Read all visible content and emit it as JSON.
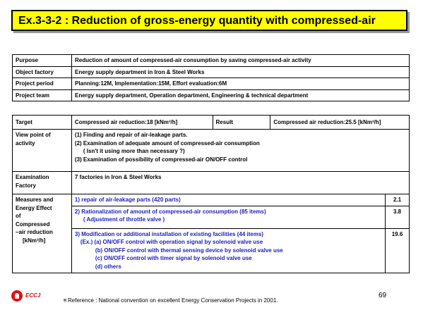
{
  "title": "Ex.3-3-2 : Reduction of gross-energy quantity with compressed-air",
  "info": {
    "purpose_label": "Purpose",
    "purpose_value": "Reduction of amount of compressed-air consumption by saving compressed-air activity",
    "factory_label": "Object factory",
    "factory_value": "Energy supply department in Iron & Steel Works",
    "period_label": "Project period",
    "period_value": "Planning:12M, Implementation:15M, Effort evaluation:6M",
    "team_label": "Project team",
    "team_value": "Energy supply department, Operation department, Engineering & technical department"
  },
  "detail": {
    "target_label": "Target",
    "target_value": "Compressed air reduction:18 [kNm³/h]",
    "result_label": "Result",
    "result_value": "Compressed air reduction:25.5 [kNm³/h]",
    "viewpoint_label": "View point of activity",
    "viewpoint_1": "(1) Finding and repair of air-leakage parts.",
    "viewpoint_2": "(2) Examination of adequate amount of compressed-air consumption",
    "viewpoint_2b": "( Isn't it using more than necessary ?)",
    "viewpoint_3": "(3) Examination of possibility of compressed-air ON/OFF control",
    "exam_label": "Examination Factory",
    "exam_value": "7 factories in Iron & Steel Works",
    "measures_label_1": "Measures and",
    "measures_label_2": "Energy Effect",
    "measures_label_3": "of",
    "measures_label_4": "Compressed",
    "measures_label_5": "–air reduction",
    "measures_label_6": "[kNm³/h]",
    "m1": "1) repair of air-leakage parts (420 parts)",
    "m1_value": "2.1",
    "m2": "2) Rationalization of amount of compressed-air consumption (85 items)",
    "m2b": "( Adjustment of throttle valve )",
    "m2_value": "3.8",
    "m3": "3) Modification or additional installation of existing facilities (44 items)",
    "m3a": "(Ex.) (a) ON/OFF control with operation signal by solenoid valve use",
    "m3b": "(b) ON/OFF control with thermal sensing device by solenoid valve use",
    "m3c": "(c) ON/OFF control with timer signal by solenoid valve use",
    "m3d": "(d) others",
    "m3_value": "19.6"
  },
  "footer": {
    "logo_text": "ECCJ",
    "reference": "＊Reference : National convention on excellent Energy Conservation Projects in 2001.",
    "page_number": "69"
  }
}
